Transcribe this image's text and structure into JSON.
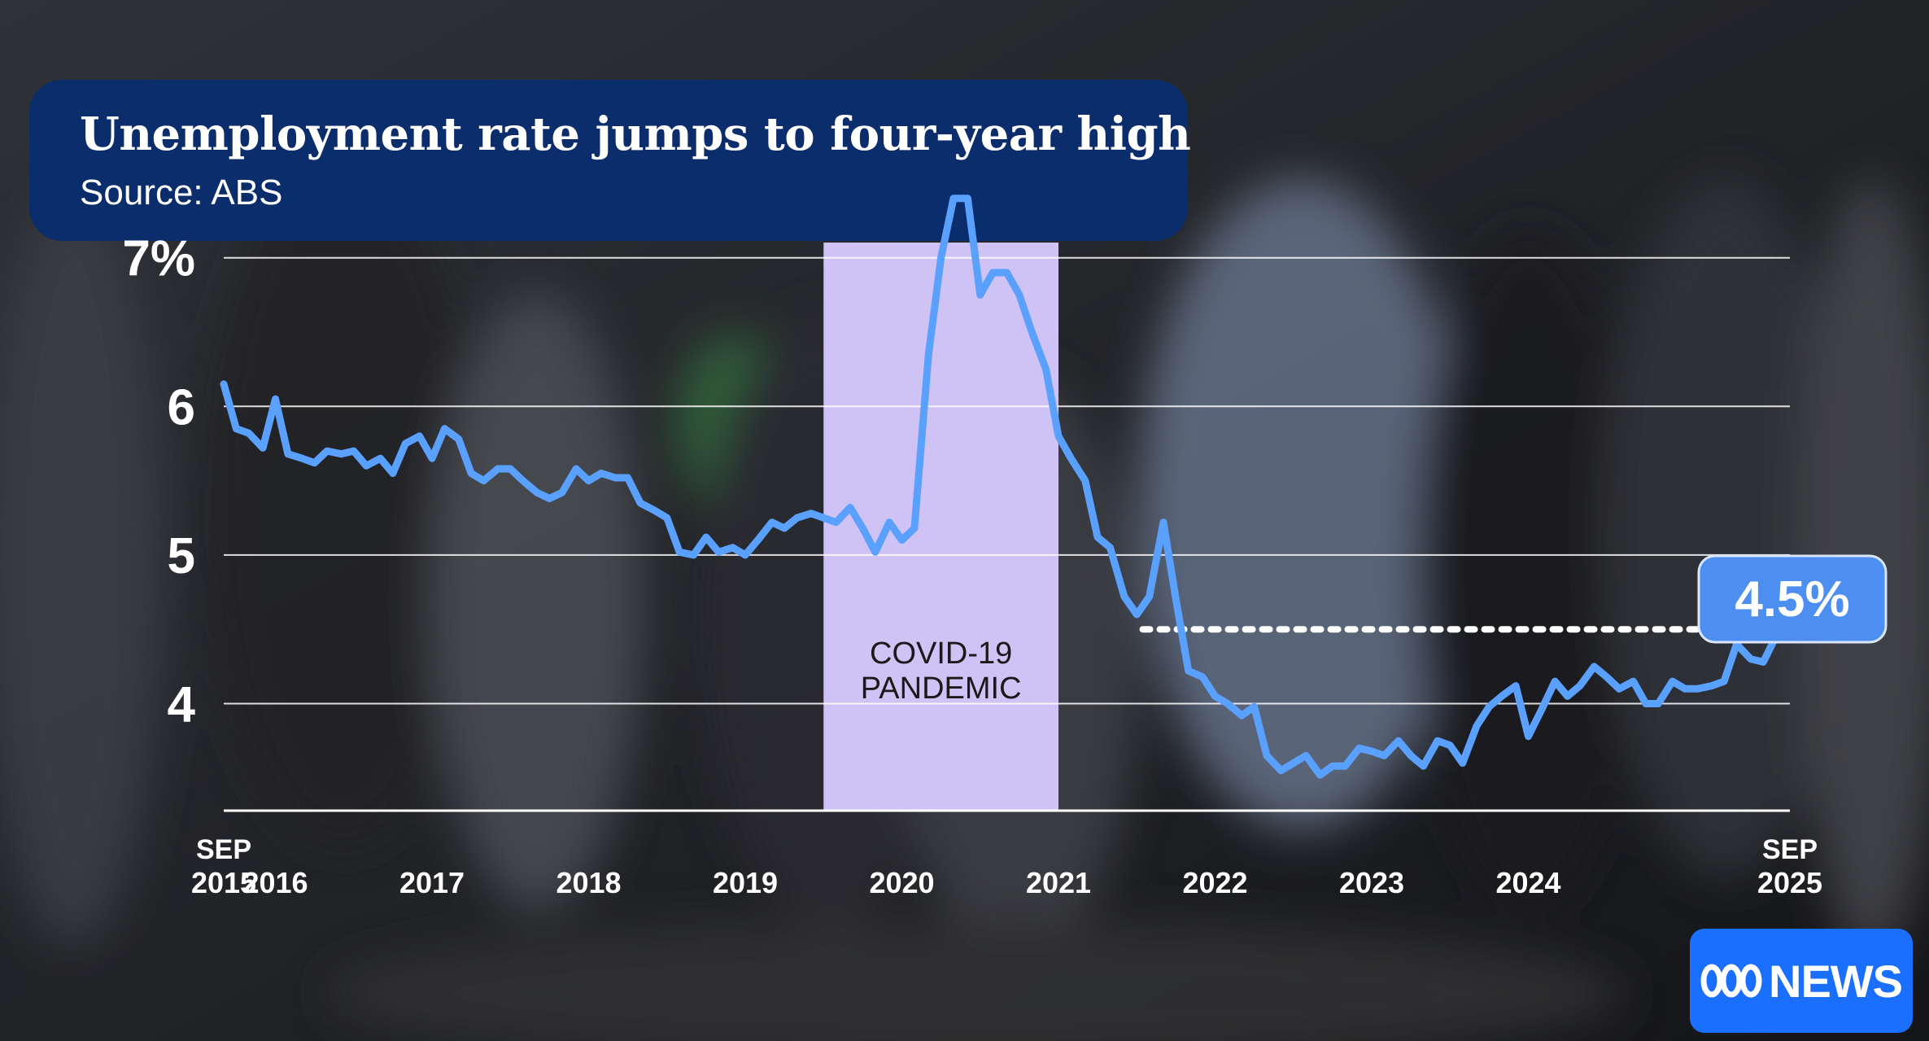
{
  "header": {
    "title": "Unemployment rate jumps to four-year high",
    "source": "Source: ABS"
  },
  "brand": {
    "logo_text": "NEWS",
    "logo_mark": "abc-logo-icon",
    "logo_color": "#1a6fff"
  },
  "colors": {
    "title_box": "#0c2d6b",
    "line": "#5aa0ff",
    "highlight": "#cfc2f5",
    "callout": "#4d8ff0"
  },
  "chart_data": {
    "type": "line",
    "title": "Unemployment rate jumps to four-year high",
    "source": "Source: ABS",
    "xlabel": "",
    "ylabel": "",
    "y_ticks": [
      "4",
      "5",
      "6",
      "7%"
    ],
    "y_tick_values": [
      4,
      5,
      6,
      7
    ],
    "ylim": [
      3.28,
      7.42
    ],
    "grid": true,
    "x_ticks": [
      {
        "label_top": "SEP",
        "label": "2015",
        "value": 2015.67
      },
      {
        "label": "2016",
        "value": 2016
      },
      {
        "label": "2017",
        "value": 2017
      },
      {
        "label": "2018",
        "value": 2018
      },
      {
        "label": "2019",
        "value": 2019
      },
      {
        "label": "2020",
        "value": 2020
      },
      {
        "label": "2021",
        "value": 2021
      },
      {
        "label": "2022",
        "value": 2022
      },
      {
        "label": "2023",
        "value": 2023
      },
      {
        "label": "2024",
        "value": 2024
      },
      {
        "label_top": "SEP",
        "label": "2025",
        "value": 2025.67
      }
    ],
    "xlim": [
      2015.67,
      2025.67
    ],
    "shaded_region": {
      "from": 2019.5,
      "to": 2021.0,
      "label_line1": "COVID-19",
      "label_line2": "PANDEMIC"
    },
    "reference_line": {
      "y": 4.5,
      "from": 2021.33,
      "to": 2025.67,
      "style": "dotted"
    },
    "callout": {
      "text": "4.5%",
      "x": 2025.67,
      "y": 4.5
    },
    "series": [
      {
        "x": [
          2015.67,
          2015.75,
          2015.83,
          2015.92,
          2016.0,
          2016.08,
          2016.17,
          2016.25,
          2016.33,
          2016.42,
          2016.5,
          2016.58,
          2016.67,
          2016.75,
          2016.83,
          2016.92,
          2017.0,
          2017.08,
          2017.17,
          2017.25,
          2017.33,
          2017.42,
          2017.5,
          2017.58,
          2017.67,
          2017.75,
          2017.83,
          2017.92,
          2018.0,
          2018.08,
          2018.17,
          2018.25,
          2018.33,
          2018.42,
          2018.5,
          2018.58,
          2018.67,
          2018.75,
          2018.83,
          2018.92,
          2019.0,
          2019.08,
          2019.17,
          2019.25,
          2019.33,
          2019.42,
          2019.5,
          2019.58,
          2019.67,
          2019.75,
          2019.83,
          2019.92,
          2020.0,
          2020.08,
          2020.17,
          2020.25,
          2020.33,
          2020.42,
          2020.5,
          2020.58,
          2020.67,
          2020.75,
          2020.83,
          2020.92,
          2021.0,
          2021.08,
          2021.17,
          2021.25,
          2021.33,
          2021.42,
          2021.5,
          2021.58,
          2021.67,
          2021.75,
          2021.83,
          2021.92,
          2022.0,
          2022.08,
          2022.17,
          2022.25,
          2022.33,
          2022.42,
          2022.5,
          2022.58,
          2022.67,
          2022.75,
          2022.83,
          2022.92,
          2023.0,
          2023.08,
          2023.17,
          2023.25,
          2023.33,
          2023.42,
          2023.5,
          2023.58,
          2023.67,
          2023.75,
          2023.83,
          2023.92,
          2024.0,
          2024.08,
          2024.17,
          2024.25,
          2024.33,
          2024.42,
          2024.5,
          2024.58,
          2024.67,
          2024.75,
          2024.83,
          2024.92,
          2025.0,
          2025.08,
          2025.17,
          2025.25,
          2025.33,
          2025.42,
          2025.5,
          2025.58,
          2025.67
        ],
        "y": [
          6.15,
          5.85,
          5.82,
          5.72,
          6.05,
          5.68,
          5.65,
          5.62,
          5.7,
          5.68,
          5.7,
          5.6,
          5.65,
          5.55,
          5.75,
          5.8,
          5.65,
          5.85,
          5.78,
          5.55,
          5.5,
          5.58,
          5.58,
          5.5,
          5.42,
          5.38,
          5.42,
          5.58,
          5.5,
          5.55,
          5.52,
          5.52,
          5.35,
          5.3,
          5.25,
          5.02,
          5.0,
          5.12,
          5.02,
          5.05,
          5.0,
          5.1,
          5.22,
          5.18,
          5.25,
          5.28,
          5.25,
          5.22,
          5.32,
          5.18,
          5.02,
          5.22,
          5.1,
          5.18,
          6.35,
          7.0,
          7.4,
          7.4,
          6.75,
          6.9,
          6.9,
          6.75,
          6.5,
          6.25,
          5.8,
          5.65,
          5.5,
          5.12,
          5.05,
          4.72,
          4.6,
          4.72,
          5.22,
          4.7,
          4.22,
          4.18,
          4.05,
          4.0,
          3.92,
          3.98,
          3.65,
          3.55,
          3.6,
          3.65,
          3.52,
          3.58,
          3.58,
          3.7,
          3.68,
          3.65,
          3.75,
          3.65,
          3.58,
          3.75,
          3.72,
          3.6,
          3.85,
          3.98,
          4.05,
          4.12,
          3.78,
          3.95,
          4.15,
          4.05,
          4.12,
          4.25,
          4.18,
          4.1,
          4.15,
          4.0,
          4.0,
          4.15,
          4.1,
          4.1,
          4.12,
          4.15,
          4.4,
          4.3,
          4.28,
          4.45,
          4.5
        ]
      }
    ]
  }
}
